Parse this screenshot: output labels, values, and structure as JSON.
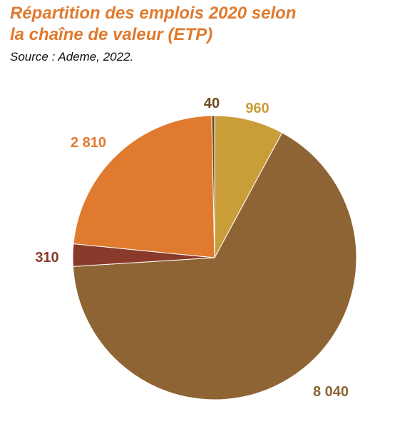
{
  "title_line1": "Répartition des emplois 2020 selon",
  "title_line2": "la chaîne de valeur (ETP)",
  "source": "Source : Ademe, 2022.",
  "colors": {
    "title": "#e07a2e",
    "source": "#111111"
  },
  "chart_data": {
    "type": "pie",
    "title": "Répartition des emplois 2020 selon la chaîne de valeur (ETP)",
    "start_angle_deg": 0,
    "direction": "clockwise",
    "slices": [
      {
        "value": 960,
        "label": "960",
        "color": "#c99e39",
        "label_color": "#c99e39"
      },
      {
        "value": 8040,
        "label": "8 040",
        "color": "#8e6434",
        "label_color": "#8e6434"
      },
      {
        "value": 310,
        "label": "310",
        "color": "#8a3a2a",
        "label_color": "#8a3a2a"
      },
      {
        "value": 2810,
        "label": "2 810",
        "color": "#e07a2e",
        "label_color": "#e07a2e"
      },
      {
        "value": 40,
        "label": "40",
        "color": "#6b4a1f",
        "label_color": "#6b4a1f"
      }
    ]
  }
}
